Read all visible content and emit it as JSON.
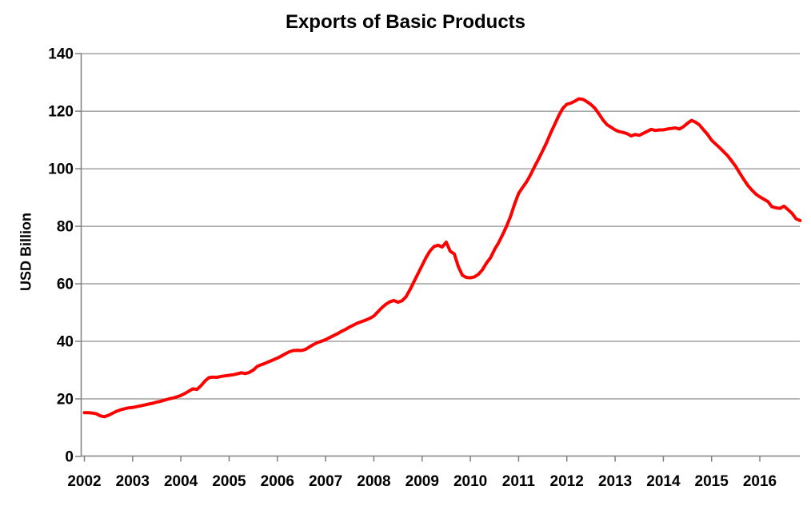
{
  "title": "Exports of Basic Products",
  "y_axis": {
    "label": "USD Billion",
    "tick_values": [
      0,
      20,
      40,
      60,
      80,
      100,
      120,
      140
    ],
    "min": 0,
    "max": 140
  },
  "x_axis": {
    "tick_labels": [
      "2002",
      "2003",
      "2004",
      "2005",
      "2006",
      "2007",
      "2008",
      "2009",
      "2010",
      "2011",
      "2012",
      "2013",
      "2014",
      "2015",
      "2016"
    ]
  },
  "colors": {
    "line": "#FF0000",
    "gridline": "#8F8F8F",
    "axis": "#808080",
    "text": "#000000",
    "background": "#FFFFFF"
  },
  "chart_data": {
    "type": "line",
    "title": "Exports of Basic Products",
    "xlabel": "",
    "ylabel": "USD Billion",
    "ylim": [
      0,
      140
    ],
    "y_ticks": [
      0,
      20,
      40,
      60,
      80,
      100,
      120,
      140
    ],
    "x_tick_labels": [
      "2002",
      "2003",
      "2004",
      "2005",
      "2006",
      "2007",
      "2008",
      "2009",
      "2010",
      "2011",
      "2012",
      "2013",
      "2014",
      "2015",
      "2016"
    ],
    "grid": "horizontal-major",
    "legend": "none",
    "series": [
      {
        "name": "Exports of Basic Products",
        "color": "#FF0000",
        "frequency": "monthly",
        "start": "2002-01",
        "end": "2016-11",
        "values": [
          15.2,
          15.2,
          15.1,
          14.8,
          14.1,
          13.8,
          14.3,
          15.0,
          15.7,
          16.2,
          16.6,
          16.9,
          17.0,
          17.3,
          17.6,
          17.9,
          18.2,
          18.5,
          18.9,
          19.2,
          19.6,
          20.0,
          20.3,
          20.7,
          21.2,
          21.9,
          22.7,
          23.5,
          23.3,
          24.6,
          26.2,
          27.4,
          27.6,
          27.5,
          27.8,
          28.0,
          28.2,
          28.4,
          28.7,
          29.1,
          28.8,
          29.2,
          30.0,
          31.3,
          31.9,
          32.4,
          33.0,
          33.6,
          34.2,
          34.9,
          35.7,
          36.4,
          36.8,
          36.9,
          36.8,
          37.2,
          38.1,
          38.9,
          39.6,
          40.1,
          40.6,
          41.3,
          42.0,
          42.7,
          43.5,
          44.2,
          45.0,
          45.7,
          46.4,
          46.9,
          47.4,
          48.0,
          48.8,
          50.3,
          51.7,
          52.9,
          53.8,
          54.2,
          53.6,
          54.1,
          55.5,
          58.0,
          60.8,
          63.6,
          66.4,
          69.2,
          71.5,
          73.0,
          73.4,
          72.8,
          74.5,
          71.3,
          70.4,
          66.0,
          63.0,
          62.2,
          62.1,
          62.4,
          63.3,
          64.9,
          67.2,
          69.0,
          71.9,
          74.2,
          77.0,
          80.0,
          83.5,
          87.7,
          91.4,
          93.5,
          95.5,
          98.0,
          100.8,
          103.5,
          106.3,
          109.2,
          112.5,
          115.5,
          118.5,
          121.0,
          122.4,
          122.8,
          123.5,
          124.3,
          124.1,
          123.3,
          122.3,
          121.0,
          119.0,
          116.9,
          115.3,
          114.4,
          113.5,
          112.9,
          112.6,
          112.2,
          111.4,
          111.9,
          111.6,
          112.3,
          113.0,
          113.7,
          113.3,
          113.5,
          113.5,
          113.8,
          114.0,
          114.2,
          113.8,
          114.6,
          115.8,
          116.8,
          116.2,
          115.2,
          113.5,
          111.9,
          109.9,
          108.6,
          107.3,
          105.9,
          104.5,
          102.7,
          100.8,
          98.5,
          96.3,
          94.2,
          92.6,
          91.2,
          90.2,
          89.4,
          88.6,
          86.8,
          86.4,
          86.2,
          87.0,
          85.8,
          84.5,
          82.6,
          82.0
        ]
      }
    ]
  }
}
